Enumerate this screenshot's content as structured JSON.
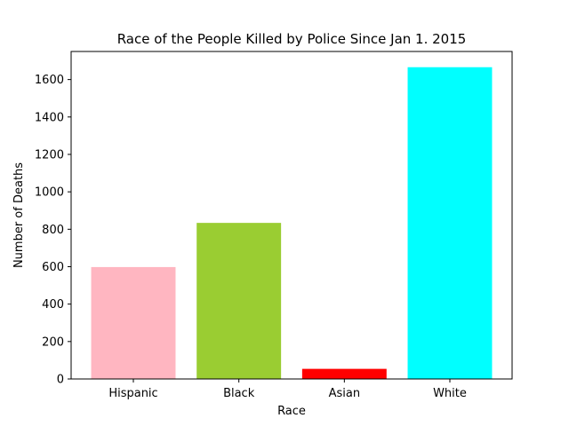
{
  "chart_data": {
    "type": "bar",
    "title": "Race of the People Killed by Police Since Jan 1. 2015",
    "xlabel": "Race",
    "ylabel": "Number of Deaths",
    "categories": [
      "Hispanic",
      "Black",
      "Asian",
      "White"
    ],
    "values": [
      598,
      834,
      54,
      1666
    ],
    "colors": [
      "#ffb6c1",
      "#9acd32",
      "#ff0000",
      "#00ffff"
    ],
    "ylim": [
      0,
      1750
    ],
    "yticks": [
      0,
      200,
      400,
      600,
      800,
      1000,
      1200,
      1400,
      1600
    ],
    "grid": false,
    "legend": "none"
  }
}
